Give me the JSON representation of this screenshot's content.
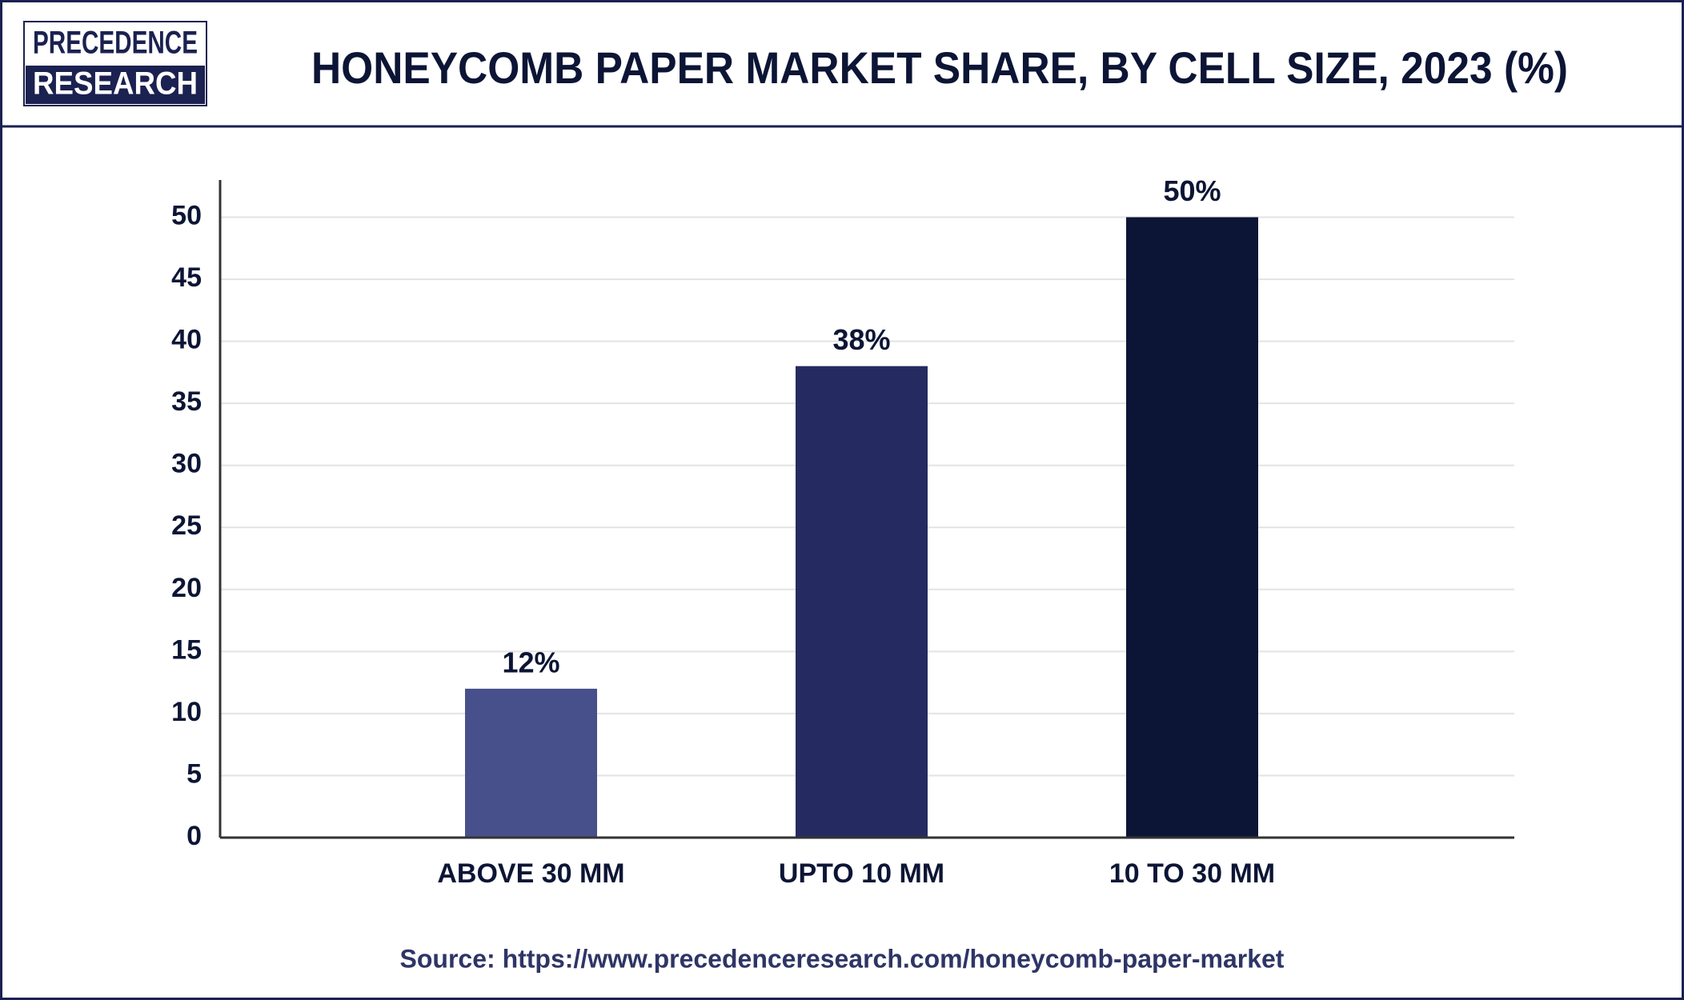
{
  "logo": {
    "line1": "PRECEDENCE",
    "line2": "RESEARCH"
  },
  "chart_data": {
    "type": "bar",
    "title": "HONEYCOMB PAPER MARKET SHARE, BY CELL SIZE, 2023 (%)",
    "categories": [
      "ABOVE 30 MM",
      "UPTO 10 MM",
      "10 TO 30 MM"
    ],
    "values": [
      12,
      38,
      50
    ],
    "value_labels": [
      "12%",
      "38%",
      "50%"
    ],
    "colors": [
      "#47508a",
      "#252b60",
      "#0c1535"
    ],
    "ylim": [
      0,
      53
    ],
    "yticks": [
      0,
      5,
      10,
      15,
      20,
      25,
      30,
      35,
      40,
      45,
      50
    ],
    "grid": true,
    "source": "Source: https://www.precedenceresearch.com/honeycomb-paper-market"
  }
}
